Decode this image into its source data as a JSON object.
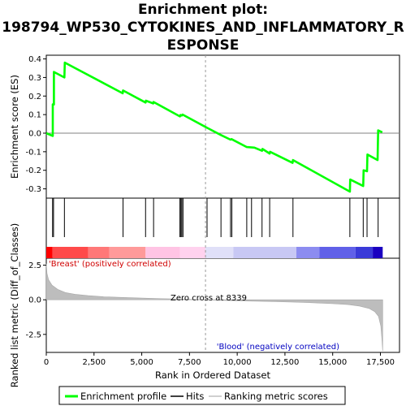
{
  "chart_data": {
    "type": "line",
    "title_lines": [
      "Enrichment plot:",
      "198794_WP530_CYTOKINES_AND_INFLAMMATORY_R",
      "ESPONSE"
    ],
    "enrichment_panel": {
      "ylabel": "Enrichment score (ES)",
      "ylim": [
        -0.35,
        0.42
      ],
      "yticks": [
        -0.3,
        -0.2,
        -0.1,
        0.0,
        0.1,
        0.2,
        0.3,
        0.4
      ],
      "ytick_labels": [
        "-0.3",
        "-0.2",
        "-0.1",
        "0.0",
        "0.1",
        "0.2",
        "0.3",
        "0.4"
      ],
      "series_name": "Enrichment profile",
      "color": "#00ff00",
      "points": [
        [
          0,
          0.0
        ],
        [
          340,
          -0.015
        ],
        [
          340,
          0.155
        ],
        [
          400,
          0.155
        ],
        [
          400,
          0.33
        ],
        [
          950,
          0.3
        ],
        [
          970,
          0.38
        ],
        [
          4000,
          0.215
        ],
        [
          4020,
          0.23
        ],
        [
          5200,
          0.165
        ],
        [
          5220,
          0.175
        ],
        [
          5600,
          0.16
        ],
        [
          5620,
          0.168
        ],
        [
          7000,
          0.09
        ],
        [
          7030,
          0.098
        ],
        [
          7100,
          0.095
        ],
        [
          7140,
          0.1
        ],
        [
          8400,
          0.03
        ],
        [
          9150,
          -0.01
        ],
        [
          9650,
          -0.035
        ],
        [
          9700,
          -0.032
        ],
        [
          10500,
          -0.075
        ],
        [
          10900,
          -0.078
        ],
        [
          11300,
          -0.095
        ],
        [
          11320,
          -0.085
        ],
        [
          11700,
          -0.11
        ],
        [
          11720,
          -0.1
        ],
        [
          12900,
          -0.16
        ],
        [
          12920,
          -0.145
        ],
        [
          15900,
          -0.315
        ],
        [
          15920,
          -0.25
        ],
        [
          16600,
          -0.285
        ],
        [
          16620,
          -0.2
        ],
        [
          16800,
          -0.205
        ],
        [
          16820,
          -0.115
        ],
        [
          17350,
          -0.145
        ],
        [
          17380,
          0.015
        ],
        [
          17600,
          0.005
        ]
      ]
    },
    "hits": {
      "series_name": "Hits",
      "positions": [
        330,
        380,
        950,
        4020,
        5200,
        5620,
        7000,
        7050,
        7100,
        7160,
        8420,
        9150,
        9650,
        9720,
        10500,
        10750,
        11300,
        11700,
        12920,
        15900,
        16600,
        16800,
        17380
      ]
    },
    "ranking_panel": {
      "series_name": "Ranking metric scores",
      "ylabel": "Ranked list metric (Diff_of_Classes)",
      "ylim": [
        -3.8,
        3.0
      ],
      "yticks": [
        -2.5,
        0.0,
        2.5
      ],
      "ytick_labels": [
        "-2.5",
        "0.0",
        "2.5"
      ],
      "curve": [
        [
          0,
          2.6
        ],
        [
          40,
          1.9
        ],
        [
          120,
          1.45
        ],
        [
          300,
          1.05
        ],
        [
          600,
          0.75
        ],
        [
          1000,
          0.52
        ],
        [
          1500,
          0.4
        ],
        [
          2200,
          0.3
        ],
        [
          3000,
          0.22
        ],
        [
          4000,
          0.17
        ],
        [
          5000,
          0.12
        ],
        [
          6000,
          0.08
        ],
        [
          7000,
          0.05
        ],
        [
          8000,
          0.015
        ],
        [
          8339,
          0.0
        ],
        [
          9000,
          -0.03
        ],
        [
          10000,
          -0.07
        ],
        [
          11000,
          -0.1
        ],
        [
          12000,
          -0.13
        ],
        [
          13000,
          -0.17
        ],
        [
          14000,
          -0.22
        ],
        [
          15000,
          -0.28
        ],
        [
          15800,
          -0.35
        ],
        [
          16400,
          -0.45
        ],
        [
          16900,
          -0.62
        ],
        [
          17200,
          -0.85
        ],
        [
          17400,
          -1.2
        ],
        [
          17520,
          -1.9
        ],
        [
          17580,
          -2.9
        ],
        [
          17620,
          -3.7
        ]
      ],
      "positive_label": "'Breast' (positively correlated)",
      "negative_label": "'Blood' (negatively correlated)",
      "zero_cross_label": "Zero cross at 8339",
      "zero_cross": 8339
    },
    "x_axis": {
      "xlabel": "Rank in Ordered Dataset",
      "xlim": [
        0,
        18500
      ],
      "n_genes": 17620,
      "xticks": [
        0,
        2500,
        5000,
        7500,
        10000,
        12500,
        15000,
        17500
      ],
      "xtick_labels": [
        "0",
        "2,500",
        "5,000",
        "7,500",
        "10,000",
        "12,500",
        "15,000",
        "17,500"
      ]
    },
    "heat_bar": {
      "segments": [
        {
          "start": 0,
          "end": 330,
          "color": "#ff0000"
        },
        {
          "start": 330,
          "end": 2200,
          "color": "#ff4a4a"
        },
        {
          "start": 2200,
          "end": 3300,
          "color": "#ff7878"
        },
        {
          "start": 3300,
          "end": 5200,
          "color": "#ff9a9a"
        },
        {
          "start": 5200,
          "end": 7000,
          "color": "#ffc4e4"
        },
        {
          "start": 7000,
          "end": 8339,
          "color": "#ffd2ee"
        },
        {
          "start": 8339,
          "end": 9800,
          "color": "#e0e0f8"
        },
        {
          "start": 9800,
          "end": 13100,
          "color": "#c8c8f4"
        },
        {
          "start": 13100,
          "end": 14300,
          "color": "#8c8cf0"
        },
        {
          "start": 14300,
          "end": 16200,
          "color": "#6060e8"
        },
        {
          "start": 16200,
          "end": 17100,
          "color": "#3a3ad8"
        },
        {
          "start": 17100,
          "end": 17620,
          "color": "#1a00c0"
        }
      ]
    },
    "legend": {
      "placement": "bottom",
      "items": [
        {
          "label": "Enrichment profile",
          "color": "#00ff00"
        },
        {
          "label": "Hits",
          "color": "#000000"
        },
        {
          "label": "Ranking metric scores",
          "color": "#c0c0c0"
        }
      ]
    },
    "grid": false
  }
}
